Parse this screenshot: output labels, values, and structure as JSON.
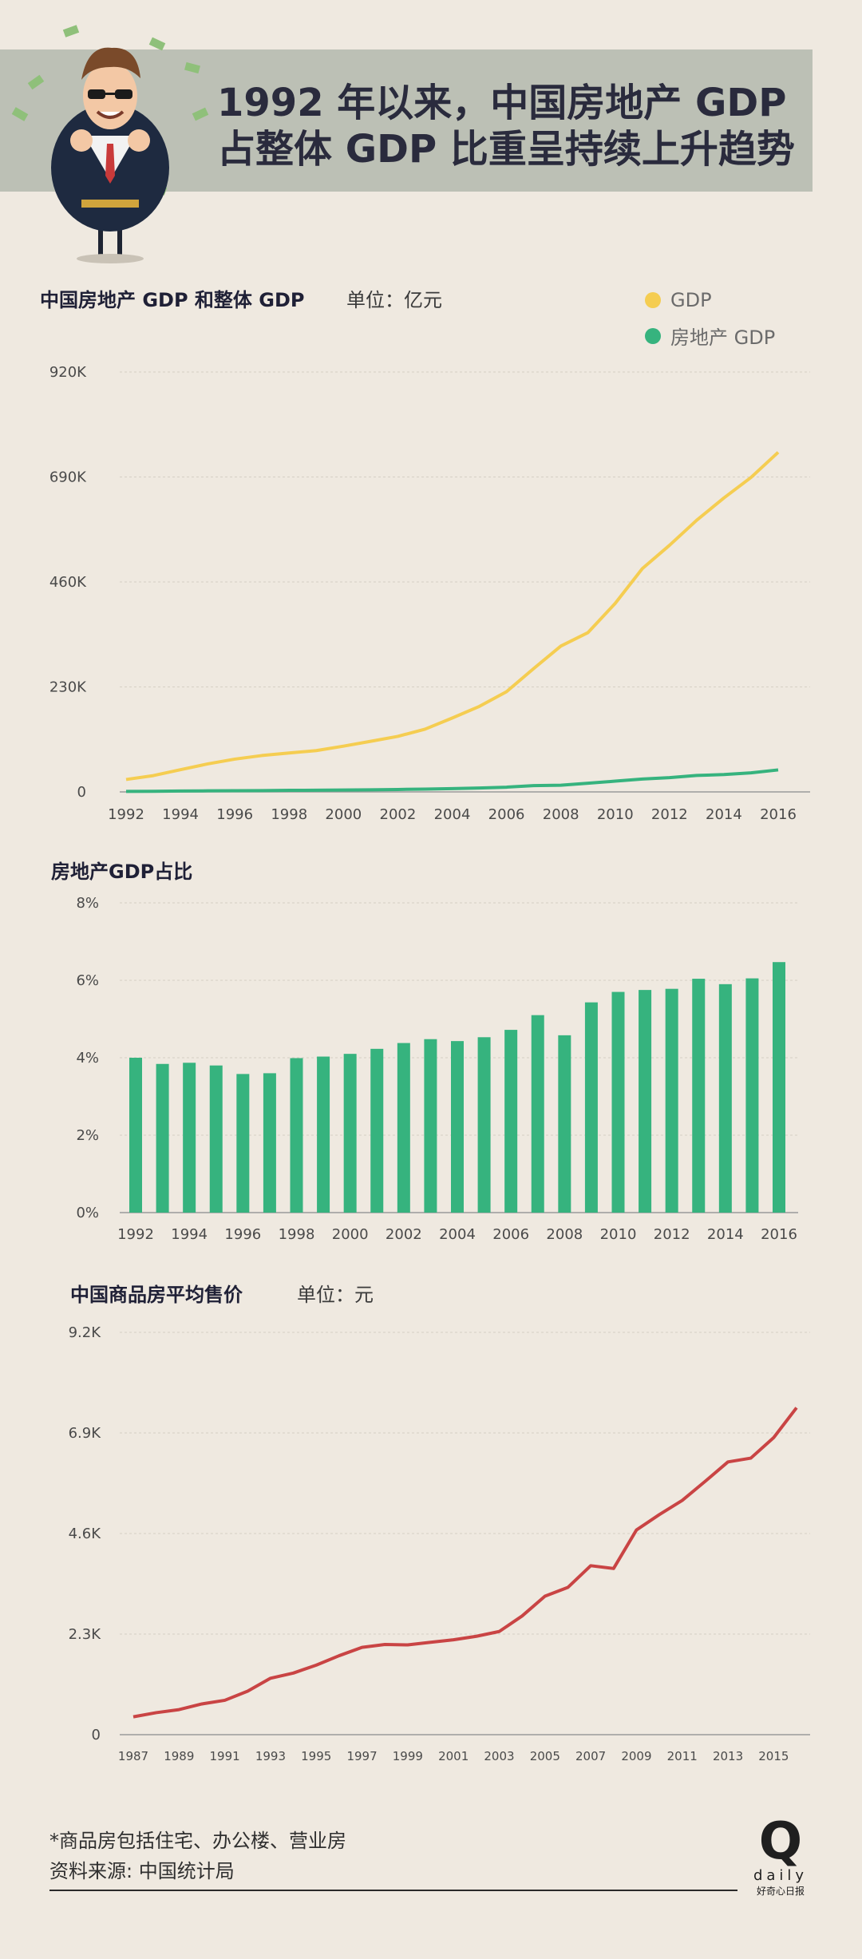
{
  "header": {
    "title_line1": "1992 年以来，中国房地产 GDP",
    "title_line2": "占整体 GDP 比重呈持续上升趋势"
  },
  "colors": {
    "gdp": "#f5cd51",
    "realestate": "#36b37e",
    "price": "#c94444",
    "banner": "#bcc0b5",
    "background": "#efe9e0"
  },
  "chart1": {
    "title": "中国房地产 GDP 和整体 GDP",
    "unit": "单位：亿元",
    "legend": [
      "GDP",
      "房地产 GDP"
    ]
  },
  "chart2": {
    "title": "房地产GDP占比"
  },
  "chart3": {
    "title": "中国商品房平均售价",
    "unit": "单位：元"
  },
  "chart_data": [
    {
      "type": "line",
      "x": [
        1992,
        1993,
        1994,
        1995,
        1996,
        1997,
        1998,
        1999,
        2000,
        2001,
        2002,
        2003,
        2004,
        2005,
        2006,
        2007,
        2008,
        2009,
        2010,
        2011,
        2012,
        2013,
        2014,
        2015,
        2016
      ],
      "series": [
        {
          "name": "GDP",
          "values": [
            27195,
            35673,
            48638,
            61340,
            71814,
            79715,
            85196,
            90564,
            100280,
            110863,
            121717,
            137422,
            161840,
            187319,
            219439,
            270232,
            319516,
            349081,
            413030,
            489301,
            540367,
            595244,
            643974,
            689052,
            744127
          ]
        },
        {
          "name": "房地产 GDP",
          "values": [
            1088,
            1370,
            1880,
            2320,
            2560,
            2870,
            3400,
            3630,
            4150,
            4690,
            5350,
            6170,
            7170,
            8520,
            10370,
            13810,
            14740,
            18970,
            23570,
            28170,
            31250,
            35990,
            38000,
            41700,
            48190
          ]
        }
      ],
      "yticks": [
        "0",
        "230K",
        "460K",
        "690K",
        "920K"
      ],
      "ylim": [
        0,
        920000
      ],
      "xticks": [
        "1992",
        "1994",
        "1996",
        "1998",
        "2000",
        "2002",
        "2004",
        "2006",
        "2008",
        "2010",
        "2012",
        "2014",
        "2016"
      ]
    },
    {
      "type": "bar",
      "categories": [
        "1992",
        "1993",
        "1994",
        "1995",
        "1996",
        "1997",
        "1998",
        "1999",
        "2000",
        "2001",
        "2002",
        "2003",
        "2004",
        "2005",
        "2006",
        "2007",
        "2008",
        "2009",
        "2010",
        "2011",
        "2012",
        "2013",
        "2014",
        "2015",
        "2016"
      ],
      "values": [
        4.0,
        3.84,
        3.87,
        3.8,
        3.58,
        3.6,
        3.99,
        4.03,
        4.1,
        4.23,
        4.38,
        4.48,
        4.43,
        4.53,
        4.72,
        5.1,
        4.58,
        5.43,
        5.7,
        5.75,
        5.78,
        6.04,
        5.9,
        6.05,
        6.47
      ],
      "yticks": [
        "0%",
        "2%",
        "4%",
        "6%",
        "8%"
      ],
      "ylim": [
        0,
        8
      ],
      "xticks": [
        "1992",
        "1994",
        "1996",
        "1998",
        "2000",
        "2002",
        "2004",
        "2006",
        "2008",
        "2010",
        "2012",
        "2014",
        "2016"
      ]
    },
    {
      "type": "line",
      "x": [
        1987,
        1988,
        1989,
        1990,
        1991,
        1992,
        1993,
        1994,
        1995,
        1996,
        1997,
        1998,
        1999,
        2000,
        2001,
        2002,
        2003,
        2004,
        2005,
        2006,
        2007,
        2008,
        2009,
        2010,
        2011,
        2012,
        2013,
        2014,
        2015,
        2016
      ],
      "series": [
        {
          "values": [
            408,
            503,
            573,
            703,
            786,
            995,
            1291,
            1409,
            1591,
            1806,
            1997,
            2063,
            2053,
            2112,
            2170,
            2250,
            2359,
            2714,
            3168,
            3367,
            3864,
            3800,
            4681,
            5032,
            5357,
            5791,
            6237,
            6324,
            6793,
            7476
          ]
        }
      ],
      "yticks": [
        "0",
        "2.3K",
        "4.6K",
        "6.9K",
        "9.2K"
      ],
      "ylim": [
        0,
        9200
      ],
      "xticks": [
        "1987",
        "1989",
        "1991",
        "1993",
        "1995",
        "1997",
        "1999",
        "2001",
        "2003",
        "2005",
        "2007",
        "2009",
        "2011",
        "2013",
        "2015"
      ]
    }
  ],
  "footer": {
    "note": "*商品房包括住宅、办公楼、营业房",
    "source": "资料来源: 中国统计局",
    "logo_letter": "Q",
    "logo_word": "daily",
    "logo_sub": "好奇心日报"
  }
}
